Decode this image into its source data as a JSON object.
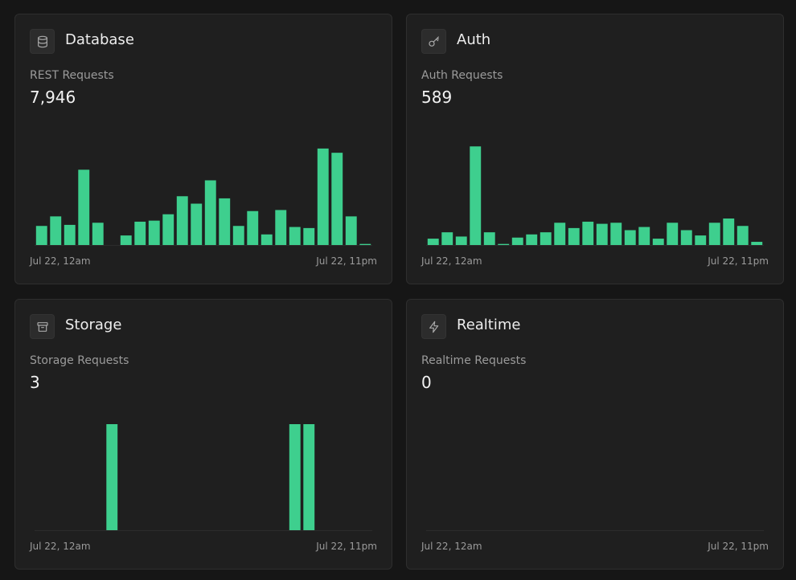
{
  "accent": "#3ecf8e",
  "cards": {
    "database": {
      "title": "Database",
      "icon": "database-icon",
      "metric_label": "REST Requests",
      "metric_value": "7,946",
      "x_start": "Jul 22, 12am",
      "x_end": "Jul 22, 11pm",
      "chart_data": {
        "type": "bar",
        "ymax": 100,
        "values": [
          18,
          27,
          19,
          71,
          21,
          0,
          9,
          22,
          23,
          29,
          46,
          39,
          61,
          44,
          18,
          32,
          10,
          33,
          17,
          16,
          91,
          87,
          27,
          1
        ]
      }
    },
    "auth": {
      "title": "Auth",
      "icon": "key-icon",
      "metric_label": "Auth Requests",
      "metric_value": "589",
      "x_start": "Jul 22, 12am",
      "x_end": "Jul 22, 11pm",
      "chart_data": {
        "type": "bar",
        "ymax": 100,
        "values": [
          6,
          12,
          8,
          93,
          12,
          1,
          7,
          10,
          12,
          21,
          16,
          22,
          20,
          21,
          14,
          17,
          6,
          21,
          14,
          9,
          21,
          25,
          18,
          3
        ]
      }
    },
    "storage": {
      "title": "Storage",
      "icon": "archive-icon",
      "metric_label": "Storage Requests",
      "metric_value": "3",
      "x_start": "Jul 22, 12am",
      "x_end": "Jul 22, 11pm",
      "chart_data": {
        "type": "bar",
        "ymax": 1,
        "values": [
          0,
          0,
          0,
          0,
          0,
          1,
          0,
          0,
          0,
          0,
          0,
          0,
          0,
          0,
          0,
          0,
          0,
          0,
          1,
          1,
          0,
          0,
          0,
          0
        ]
      }
    },
    "realtime": {
      "title": "Realtime",
      "icon": "bolt-icon",
      "metric_label": "Realtime Requests",
      "metric_value": "0",
      "x_start": "Jul 22, 12am",
      "x_end": "Jul 22, 11pm",
      "chart_data": {
        "type": "bar",
        "ymax": 1,
        "values": [
          0,
          0,
          0,
          0,
          0,
          0,
          0,
          0,
          0,
          0,
          0,
          0,
          0,
          0,
          0,
          0,
          0,
          0,
          0,
          0,
          0,
          0,
          0,
          0
        ]
      }
    }
  }
}
